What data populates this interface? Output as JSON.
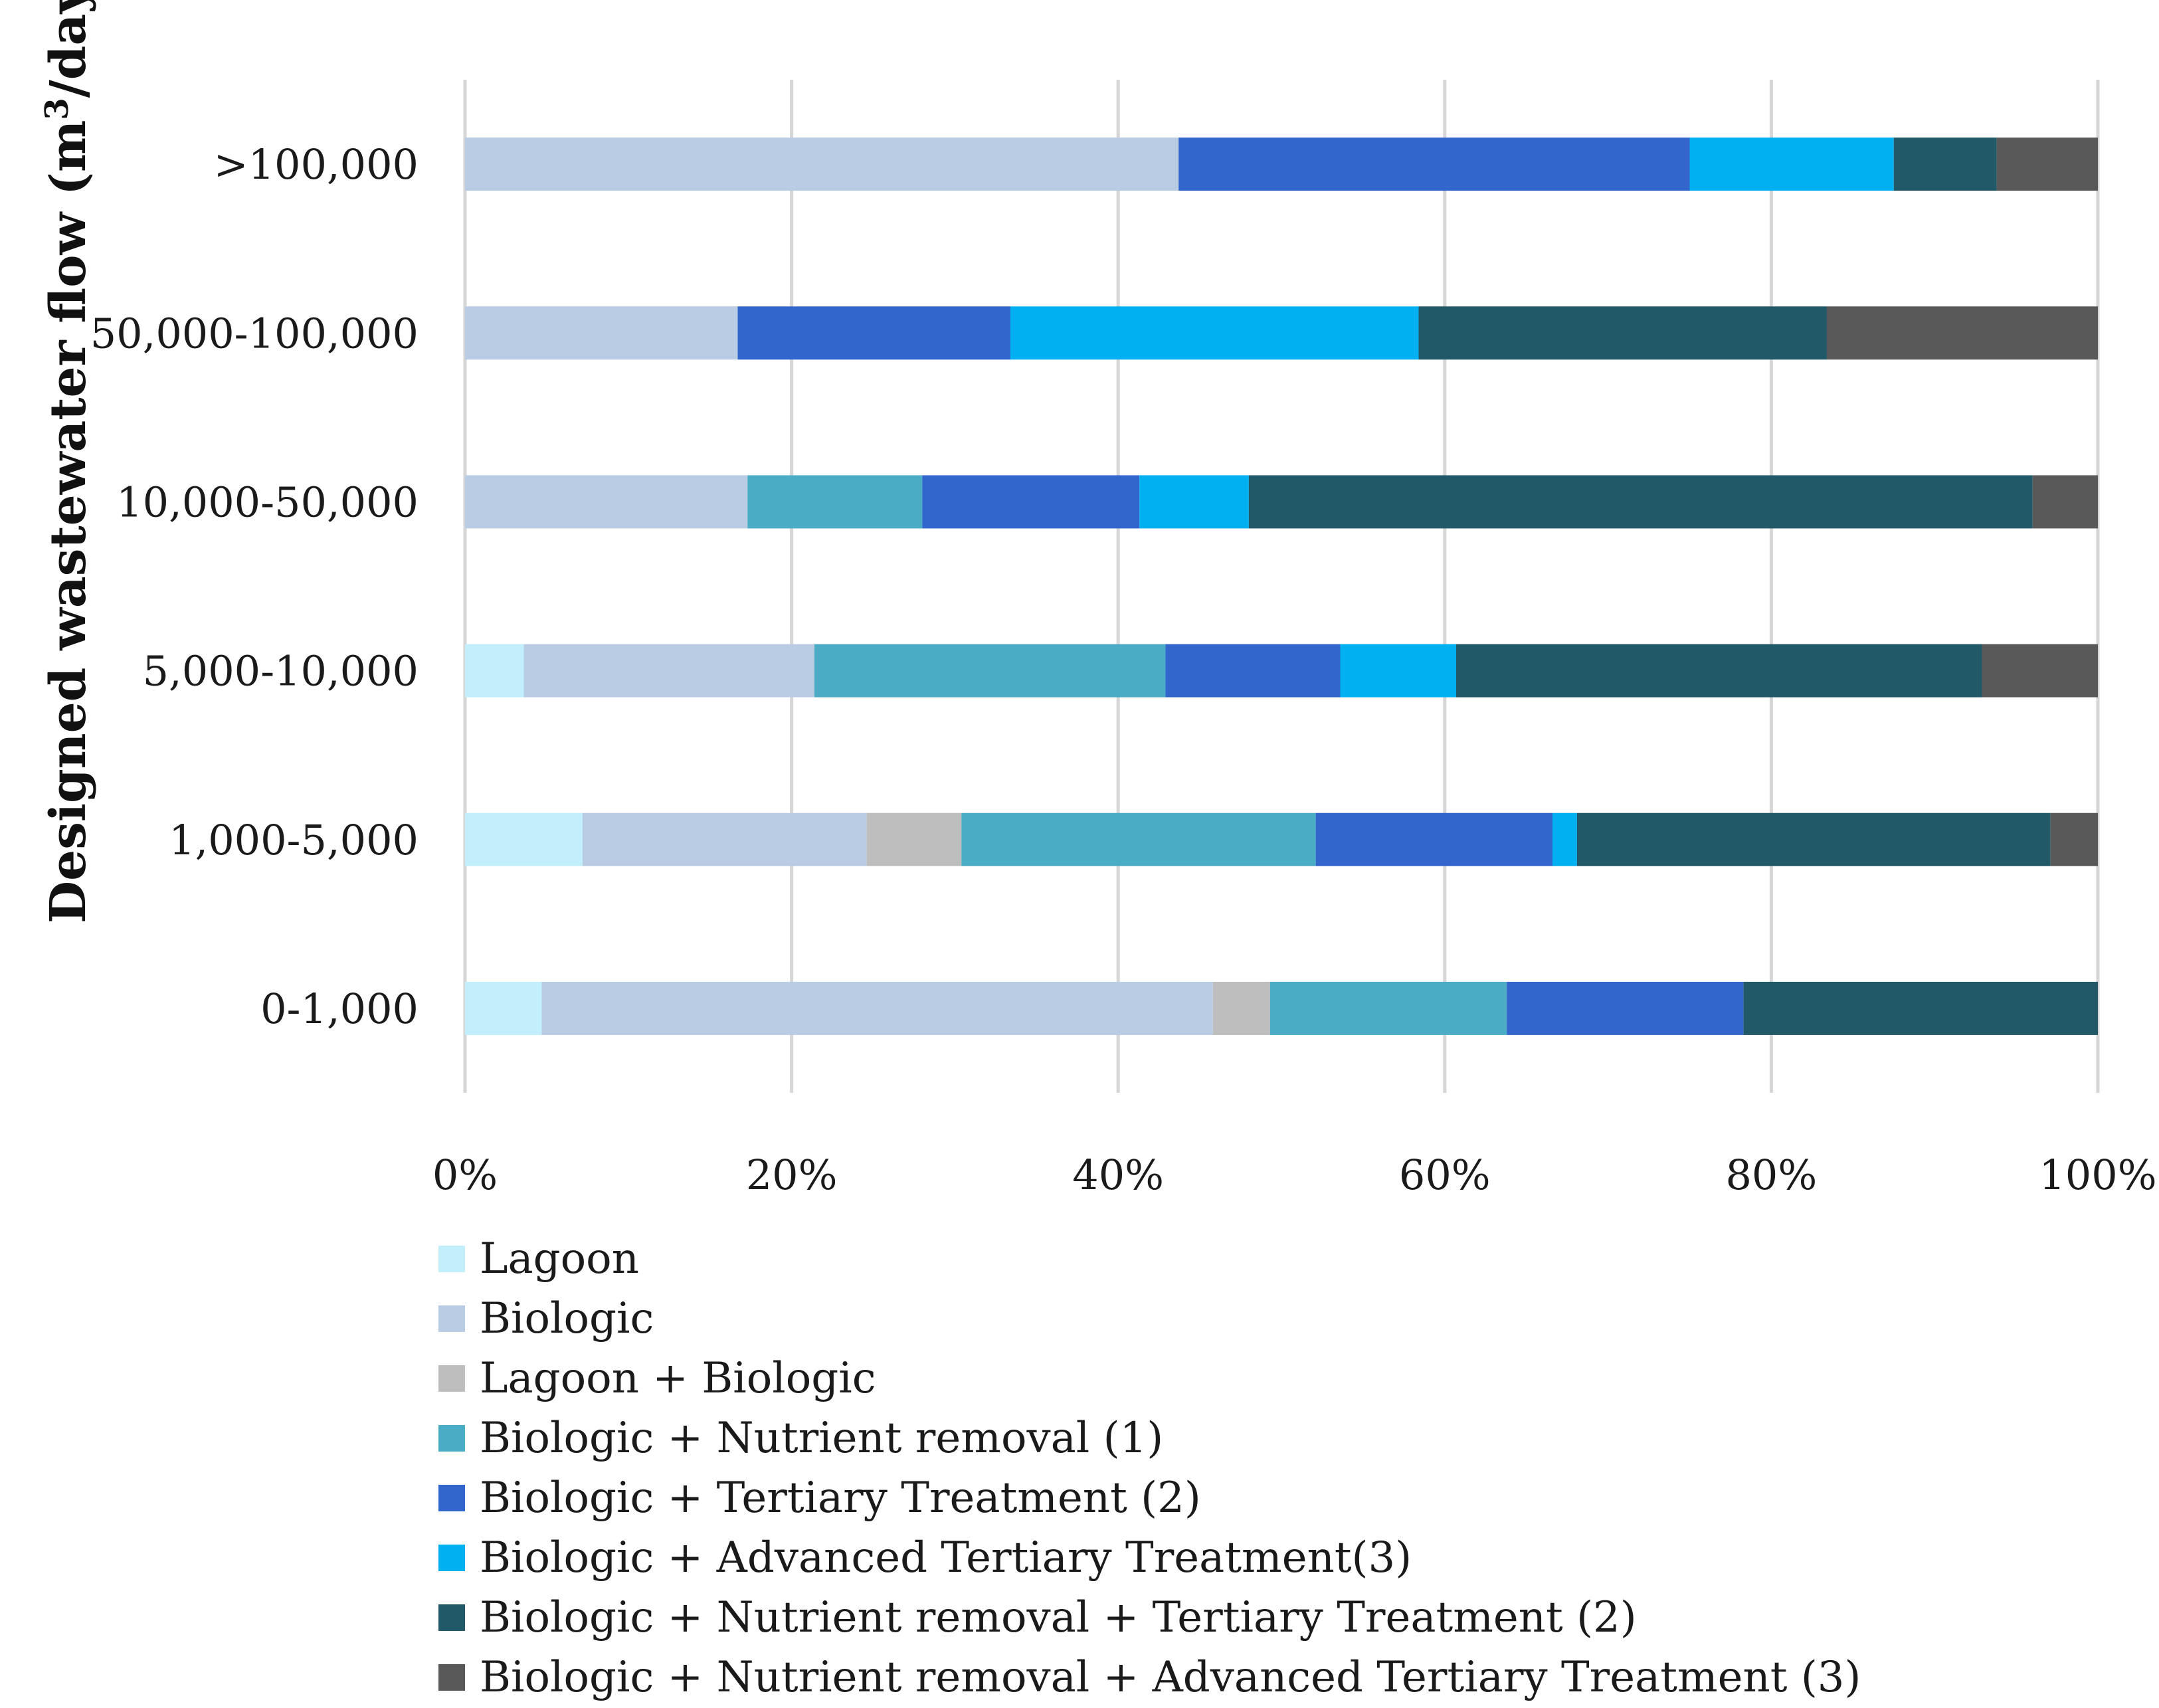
{
  "chart_data": {
    "type": "bar",
    "orientation": "horizontal",
    "stacked": "percent",
    "ylabel_main": "Designed wastewater flow (m",
    "ylabel_sup": "3",
    "ylabel_tail": "/day)",
    "xlim": [
      0,
      100
    ],
    "xticks": [
      "0%",
      "20%",
      "40%",
      "60%",
      "80%",
      "100%"
    ],
    "categories": [
      "0-1,000",
      "1,000-5,000",
      "5,000-10,000",
      "10,000-50,000",
      "50,000-100,000",
      ">100,000"
    ],
    "series": [
      {
        "name": "Lagoon",
        "color": "#C3EEFB",
        "values": [
          4.7,
          7.2,
          3.6,
          0,
          0,
          0
        ]
      },
      {
        "name": "Biologic",
        "color": "#B9CCE4",
        "values": [
          41.1,
          17.4,
          17.8,
          17.3,
          16.7,
          43.7
        ]
      },
      {
        "name": "Lagoon + Biologic",
        "color": "#BEBEBE",
        "values": [
          3.5,
          5.8,
          0,
          0,
          0,
          0
        ]
      },
      {
        "name": "Biologic + Nutrient removal  (1)",
        "color": "#4BACC6",
        "values": [
          14.5,
          21.7,
          21.5,
          10.7,
          0,
          0
        ]
      },
      {
        "name": "Biologic + Tertiary Treatment  (2)",
        "color": "#3366CC",
        "values": [
          14.5,
          14.5,
          10.7,
          13.3,
          16.7,
          31.3
        ]
      },
      {
        "name": "Biologic + Advanced Tertiary Treatment(3)",
        "color": "#00B0F0",
        "values": [
          0,
          1.5,
          7.1,
          6.7,
          25.0,
          12.5
        ]
      },
      {
        "name": "Biologic + Nutrient removal + Tertiary Treatment (2)",
        "color": "#215968",
        "values": [
          21.7,
          29.0,
          32.2,
          48.0,
          25.0,
          6.3
        ]
      },
      {
        "name": "Biologic + Nutrient removal + Advanced Tertiary Treatment  (3)",
        "color": "#595959",
        "values": [
          0,
          2.9,
          7.1,
          4.0,
          16.6,
          6.2
        ]
      }
    ]
  }
}
